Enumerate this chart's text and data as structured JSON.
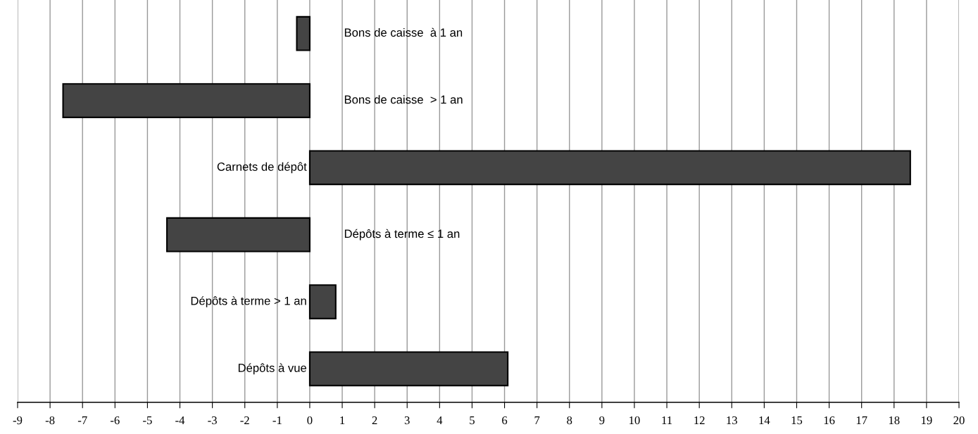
{
  "chart_data": {
    "type": "bar",
    "orientation": "horizontal",
    "categories": [
      "Bons de caisse  à 1 an",
      "Bons de caisse  > 1 an",
      "Carnets de dépôt",
      "Dépôts à terme ≤ 1 an",
      "Dépôts à terme > 1 an",
      "Dépôts à vue"
    ],
    "values": [
      -0.4,
      -7.6,
      18.5,
      -4.4,
      0.8,
      6.1
    ],
    "color": "#444444",
    "xlim": [
      -9,
      20
    ],
    "xticks": [
      -9,
      -8,
      -7,
      -6,
      -5,
      -4,
      -3,
      -2,
      -1,
      0,
      1,
      2,
      3,
      4,
      5,
      6,
      7,
      8,
      9,
      10,
      11,
      12,
      13,
      14,
      15,
      16,
      17,
      18,
      19,
      20
    ],
    "grid": "x",
    "legend": false
  }
}
